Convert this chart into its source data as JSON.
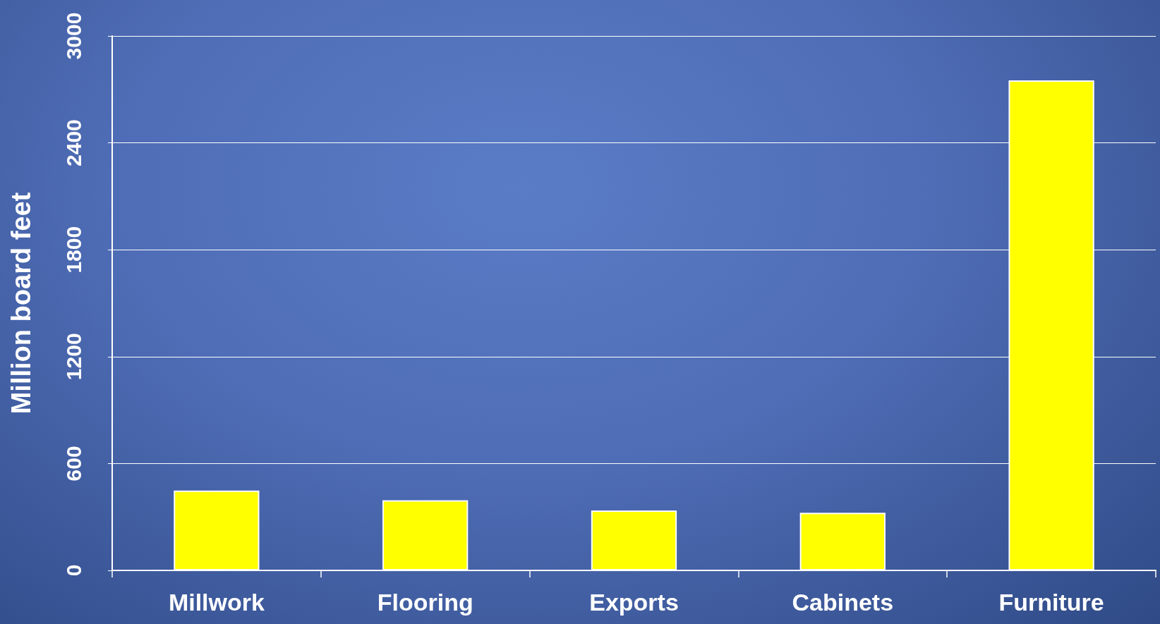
{
  "chart_data": {
    "type": "bar",
    "ylabel": "Million board feet",
    "categories": [
      "Millwork",
      "Flooring",
      "Exports",
      "Cabinets",
      "Furniture"
    ],
    "values": [
      448,
      394,
      336,
      324,
      2751
    ],
    "color": "#ffff00",
    "ylim": [
      0,
      3000
    ],
    "yticks": [
      0,
      600,
      1200,
      1800,
      2400,
      3000
    ],
    "grid": "y"
  }
}
